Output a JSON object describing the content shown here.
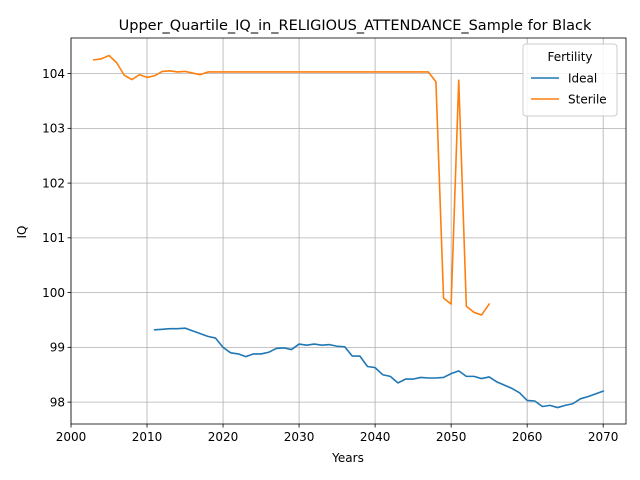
{
  "chart_data": {
    "type": "line",
    "title": "Upper_Quartile_IQ_in_RELIGIOUS_ATTENDANCE_Sample for Black",
    "xlabel": "Years",
    "ylabel": "IQ",
    "xlim": [
      2000,
      2073
    ],
    "ylim": [
      97.6,
      104.65
    ],
    "xticks": [
      2000,
      2010,
      2020,
      2030,
      2040,
      2050,
      2060,
      2070
    ],
    "yticks": [
      98,
      99,
      100,
      101,
      102,
      103,
      104
    ],
    "grid": true,
    "legend": {
      "title": "Fertility",
      "placement": "top-right"
    },
    "series": [
      {
        "name": "Ideal",
        "color": "#1f77b4",
        "x": [
          2011,
          2012,
          2013,
          2014,
          2015,
          2016,
          2017,
          2018,
          2019,
          2020,
          2021,
          2022,
          2023,
          2024,
          2025,
          2026,
          2027,
          2028,
          2029,
          2030,
          2031,
          2032,
          2033,
          2034,
          2035,
          2036,
          2037,
          2038,
          2039,
          2040,
          2041,
          2042,
          2043,
          2044,
          2045,
          2046,
          2047,
          2048,
          2049,
          2050,
          2051,
          2052,
          2053,
          2054,
          2055,
          2056,
          2057,
          2058,
          2059,
          2060,
          2061,
          2062,
          2063,
          2064,
          2065,
          2066,
          2067,
          2068,
          2069,
          2070
        ],
        "y": [
          99.32,
          99.33,
          99.34,
          99.34,
          99.35,
          99.3,
          99.25,
          99.2,
          99.17,
          99.0,
          98.9,
          98.88,
          98.83,
          98.88,
          98.88,
          98.91,
          98.98,
          98.99,
          98.96,
          99.06,
          99.04,
          99.06,
          99.04,
          99.05,
          99.02,
          99.01,
          98.84,
          98.84,
          98.65,
          98.63,
          98.5,
          98.47,
          98.35,
          98.42,
          98.42,
          98.45,
          98.44,
          98.44,
          98.45,
          98.52,
          98.57,
          98.47,
          98.47,
          98.43,
          98.46,
          98.37,
          98.31,
          98.25,
          98.17,
          98.03,
          98.02,
          97.92,
          97.94,
          97.9,
          97.94,
          97.97,
          98.06,
          98.1,
          98.15,
          98.2
        ]
      },
      {
        "name": "Sterile",
        "color": "#ff7f0e",
        "x": [
          2003,
          2004,
          2005,
          2006,
          2007,
          2008,
          2009,
          2010,
          2011,
          2012,
          2013,
          2014,
          2015,
          2016,
          2017,
          2018,
          2019,
          2020,
          2021,
          2022,
          2023,
          2024,
          2025,
          2026,
          2027,
          2028,
          2029,
          2030,
          2031,
          2032,
          2033,
          2034,
          2035,
          2036,
          2037,
          2038,
          2039,
          2040,
          2041,
          2042,
          2043,
          2044,
          2045,
          2046,
          2047,
          2048,
          2049,
          2050,
          2051,
          2052,
          2053,
          2054,
          2055
        ],
        "y": [
          104.25,
          104.27,
          104.33,
          104.2,
          103.97,
          103.89,
          103.98,
          103.93,
          103.96,
          104.04,
          104.05,
          104.03,
          104.04,
          104.01,
          103.98,
          104.03,
          104.03,
          104.03,
          104.03,
          104.03,
          104.03,
          104.03,
          104.03,
          104.03,
          104.03,
          104.03,
          104.03,
          104.03,
          104.03,
          104.03,
          104.03,
          104.03,
          104.03,
          104.03,
          104.03,
          104.03,
          104.03,
          104.03,
          104.03,
          104.03,
          104.03,
          104.03,
          104.03,
          104.03,
          104.03,
          103.85,
          99.9,
          99.79,
          103.88,
          99.75,
          99.64,
          99.59,
          99.79
        ]
      }
    ]
  }
}
